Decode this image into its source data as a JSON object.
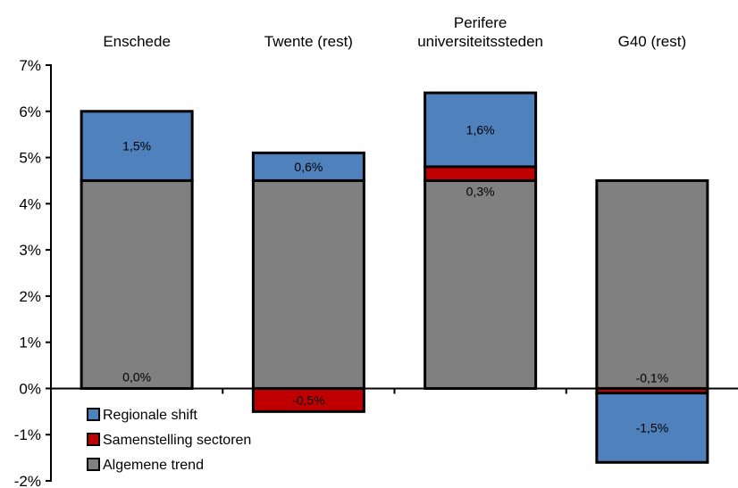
{
  "chart_data": {
    "type": "bar",
    "stacked": true,
    "title": "",
    "xlabel": "",
    "ylabel": "",
    "categories": [
      [
        "Enschede"
      ],
      [
        "Twente (rest)"
      ],
      [
        "Perifere",
        "universiteitssteden"
      ],
      [
        "G40 (rest)"
      ]
    ],
    "series": [
      {
        "name": "Algemene trend",
        "color": "#808080",
        "values": [
          4.5,
          4.5,
          4.5,
          4.5
        ]
      },
      {
        "name": "Samenstelling sectoren",
        "color": "#c00000",
        "values": [
          0.0,
          -0.5,
          0.3,
          -0.1
        ]
      },
      {
        "name": "Regionale shift",
        "color": "#4f81bd",
        "values": [
          1.5,
          0.6,
          1.6,
          -1.5
        ]
      }
    ],
    "data_labels": [
      {
        "category_index": 0,
        "series": "Samenstelling sectoren",
        "text": "0,0%"
      },
      {
        "category_index": 0,
        "series": "Regionale shift",
        "text": "1,5%"
      },
      {
        "category_index": 1,
        "series": "Samenstelling sectoren",
        "text": "-0,5%"
      },
      {
        "category_index": 1,
        "series": "Regionale shift",
        "text": "0,6%"
      },
      {
        "category_index": 2,
        "series": "Samenstelling sectoren",
        "text": "0,3%"
      },
      {
        "category_index": 2,
        "series": "Regionale shift",
        "text": "1,6%"
      },
      {
        "category_index": 3,
        "series": "Samenstelling sectoren",
        "text": "-0,1%"
      },
      {
        "category_index": 3,
        "series": "Regionale shift",
        "text": "-1,5%"
      }
    ],
    "ylim": [
      -2,
      7
    ],
    "yticks": [
      -2,
      -1,
      0,
      1,
      2,
      3,
      4,
      5,
      6,
      7
    ],
    "ytick_labels": [
      "-2%",
      "-1%",
      "0%",
      "1%",
      "2%",
      "3%",
      "4%",
      "5%",
      "6%",
      "7%"
    ],
    "legend": {
      "position": "bottom-left",
      "items": [
        "Regionale shift",
        "Samenstelling sectoren",
        "Algemene trend"
      ]
    },
    "grid": false
  }
}
